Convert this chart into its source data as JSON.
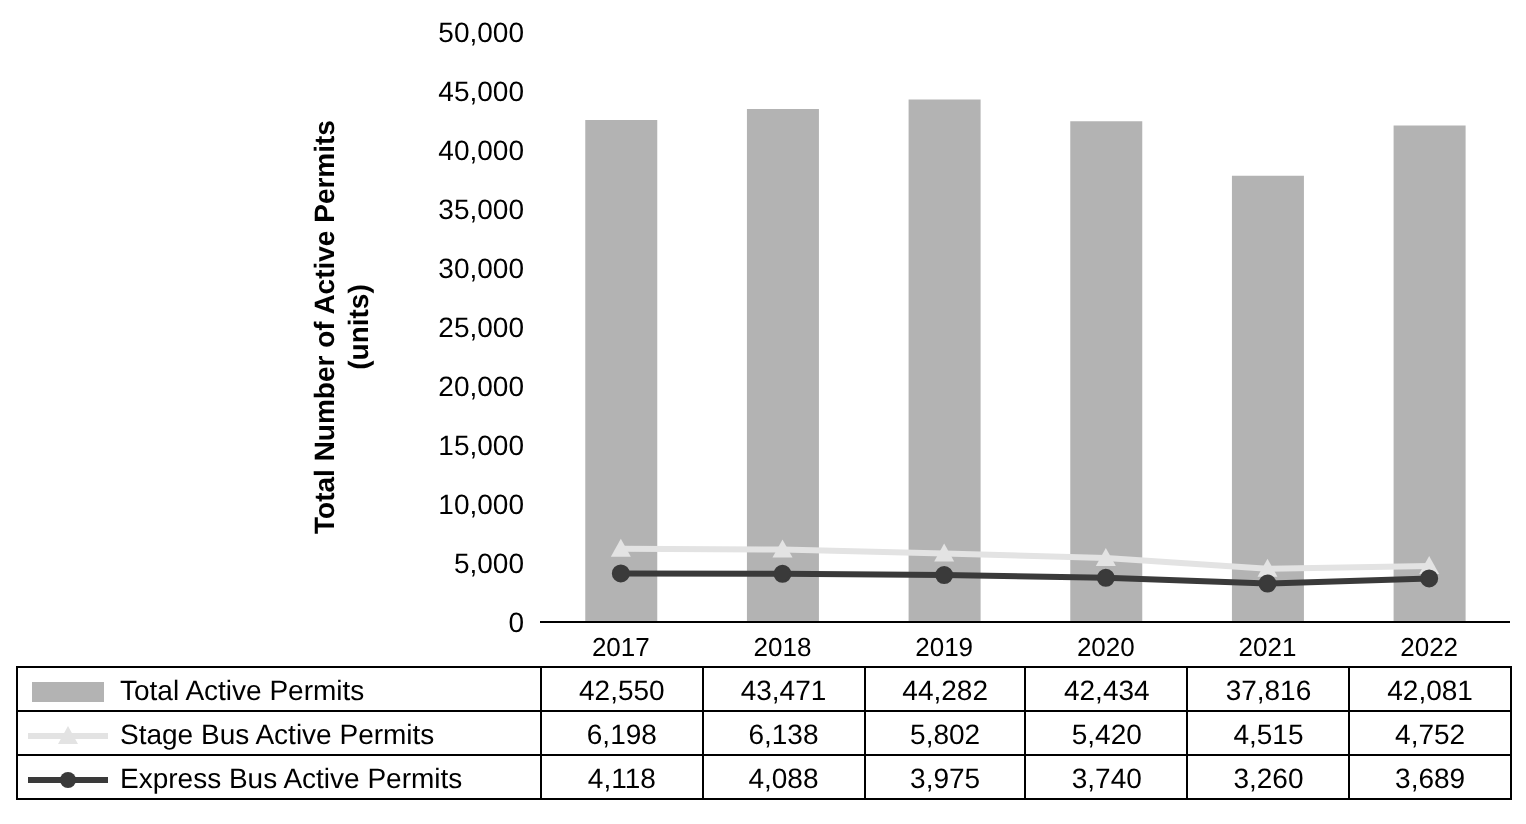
{
  "chart_data": {
    "type": "bar",
    "ylabel": "Total Number of Active Permits\n(units)",
    "categories": [
      "2017",
      "2018",
      "2019",
      "2020",
      "2021",
      "2022"
    ],
    "series": [
      {
        "name": "Total Active Permits",
        "color": "#b3b3b3",
        "values": [
          42550,
          43471,
          44282,
          42434,
          37816,
          42081
        ],
        "value_labels": [
          "42,550",
          "43,471",
          "44,282",
          "42,434",
          "37,816",
          "42,081"
        ]
      },
      {
        "name": "Stage Bus Active Permits",
        "type": "line",
        "color": "#e3e3e3",
        "marker": "triangle",
        "values": [
          6198,
          6138,
          5802,
          5420,
          4515,
          4752
        ],
        "value_labels": [
          "6,198",
          "6,138",
          "5,802",
          "5,420",
          "4,515",
          "4,752"
        ]
      },
      {
        "name": "Express Bus Active Permits",
        "type": "line",
        "color": "#3a3a3a",
        "marker": "circle",
        "values": [
          4118,
          4088,
          3975,
          3740,
          3260,
          3689
        ],
        "value_labels": [
          "4,118",
          "4,088",
          "3,975",
          "3,740",
          "3,260",
          "3,689"
        ]
      }
    ],
    "ylim": [
      0,
      50000
    ],
    "yticks": [
      {
        "value": 0,
        "label": "0"
      },
      {
        "value": 5000,
        "label": "5,000"
      },
      {
        "value": 10000,
        "label": "10,000"
      },
      {
        "value": 15000,
        "label": "15,000"
      },
      {
        "value": 20000,
        "label": "20,000"
      },
      {
        "value": 25000,
        "label": "25,000"
      },
      {
        "value": 30000,
        "label": "30,000"
      },
      {
        "value": 35000,
        "label": "35,000"
      },
      {
        "value": 40000,
        "label": "40,000"
      },
      {
        "value": 45000,
        "label": "45,000"
      },
      {
        "value": 50000,
        "label": "50,000"
      }
    ],
    "grid": false,
    "legend": "bottom"
  }
}
